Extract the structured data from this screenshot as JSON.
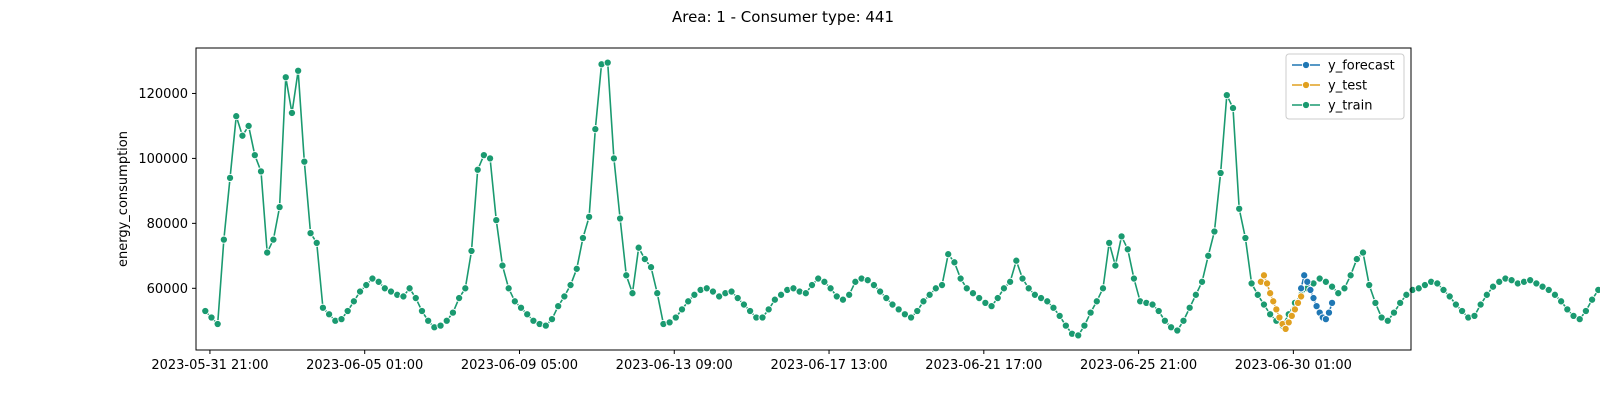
{
  "chart_data": {
    "type": "line",
    "title": "Area: 1 - Consumer type: 441",
    "xlabel": "",
    "ylabel": "energy_consumption",
    "xlim": [
      "2023-05-31 12:00",
      "2023-07-03 05:00"
    ],
    "ylim": [
      41000,
      134000
    ],
    "y_ticks": [
      60000,
      80000,
      100000,
      120000
    ],
    "x_ticks": [
      "2023-05-31 21:00",
      "2023-06-05 01:00",
      "2023-06-09 05:00",
      "2023-06-13 09:00",
      "2023-06-17 13:00",
      "2023-06-21 17:00",
      "2023-06-25 21:00",
      "2023-06-30 01:00"
    ],
    "grid": false,
    "legend_position": "top-right",
    "series": [
      {
        "name": "y_forecast",
        "color": "#1f77b4",
        "start": "2023-06-30 06:00",
        "step_hours": 2,
        "values": [
          60000,
          64000,
          62000,
          59500,
          57000,
          54500,
          52500,
          51000,
          50500,
          52500,
          55500
        ]
      },
      {
        "name": "y_test",
        "color": "#e0a020",
        "start": "2023-06-29 04:00",
        "step_hours": 2,
        "values": [
          62000,
          64000,
          61500,
          58500,
          56000,
          53500,
          51000,
          49000,
          47500,
          49500,
          51500,
          53500,
          55500,
          57500
        ]
      },
      {
        "name": "y_train",
        "color": "#1a9a70",
        "start": "2023-05-31 18:00",
        "step_hours": 4,
        "values": [
          53000,
          51000,
          49000,
          75000,
          94000,
          113000,
          107000,
          110000,
          101000,
          96000,
          71000,
          75000,
          85000,
          125000,
          114000,
          127000,
          99000,
          77000,
          74000,
          54000,
          52000,
          50000,
          50500,
          53000,
          56000,
          59000,
          61000,
          63000,
          62000,
          60000,
          59000,
          58000,
          57500,
          60000,
          57000,
          53000,
          50000,
          48000,
          48500,
          50000,
          52500,
          57000,
          60000,
          71500,
          96500,
          101000,
          100000,
          81000,
          67000,
          60000,
          56000,
          54000,
          52000,
          50000,
          49000,
          48500,
          50500,
          54500,
          57500,
          61000,
          66000,
          75500,
          82000,
          109000,
          129000,
          129500,
          100000,
          81500,
          64000,
          58500,
          72500,
          69000,
          66500,
          58500,
          49000,
          49500,
          51000,
          53500,
          56000,
          58000,
          59500,
          60000,
          59000,
          57500,
          58500,
          59000,
          57000,
          55000,
          53000,
          51000,
          51000,
          53500,
          56500,
          58000,
          59500,
          60000,
          59000,
          58500,
          61000,
          63000,
          62000,
          60000,
          57500,
          56500,
          58000,
          62000,
          63000,
          62500,
          61000,
          59000,
          57000,
          55000,
          53500,
          52000,
          51000,
          53000,
          56000,
          58000,
          60000,
          61000,
          70500,
          68000,
          63000,
          60000,
          58500,
          57000,
          55500,
          54500,
          57000,
          60000,
          62000,
          68500,
          63000,
          60000,
          58000,
          57000,
          56000,
          54000,
          51500,
          48500,
          46000,
          45500,
          48500,
          52500,
          56000,
          60000,
          74000,
          67000,
          76000,
          72000,
          63000,
          56000,
          55500,
          55000,
          53000,
          50000,
          48000,
          47000,
          50000,
          54000,
          58000,
          62000,
          70000,
          77500,
          95500,
          119500,
          115500,
          84500,
          75500,
          61500,
          58000,
          55000,
          52000,
          50000,
          48500,
          52000,
          55500,
          58000,
          60000,
          61500,
          63000,
          62000,
          60500,
          58500,
          60000,
          64000,
          69000,
          71000,
          61000,
          55500,
          51000,
          50000,
          52500,
          55500,
          58000,
          59500,
          60000,
          61000,
          62000,
          61500,
          59500,
          57500,
          55000,
          53000,
          51000,
          51500,
          55000,
          58000,
          60500,
          62000,
          63000,
          62500,
          61500,
          62000,
          62500,
          61500,
          60500,
          59500,
          58000,
          56000,
          53500,
          51500,
          50500,
          53000,
          56500,
          59500,
          61000,
          62500,
          63500,
          65000,
          64000,
          61500,
          59000,
          60500,
          62500,
          62000,
          60000,
          57500,
          55000,
          52500,
          51000,
          49500,
          52000,
          55500,
          58500,
          61000,
          62500,
          64500,
          63500,
          62500,
          61000,
          59000,
          57500,
          56000,
          55000,
          54000,
          53000,
          52500,
          55000,
          58000,
          60000,
          61500,
          61000,
          59500,
          58000,
          56500,
          58500,
          61000,
          60000,
          58000,
          56000,
          54000,
          52500,
          51500,
          54500,
          58000,
          62000,
          65000,
          64500,
          63500,
          62500,
          62000,
          61000,
          59000,
          57000,
          55000,
          53000,
          51500,
          50500,
          52000,
          54500,
          56000,
          57000,
          56000,
          54500,
          53000,
          51500,
          50000,
          48500,
          47000,
          46500,
          48000,
          52000,
          56000,
          58500,
          60000,
          61000,
          60500,
          59000,
          60000,
          61500,
          59000,
          57000,
          55000,
          53000,
          50000,
          48500,
          48000,
          50000,
          54000,
          57000,
          58500,
          60000,
          59500,
          58500,
          57000,
          55000,
          53500,
          52500,
          51000,
          49500,
          47500,
          46000,
          46500,
          50000,
          53500,
          56000,
          58000,
          60500,
          61500,
          62500,
          61500,
          60000,
          58500,
          57500,
          55500,
          53500,
          51500,
          50000,
          51000,
          54500,
          57000,
          58500,
          59000,
          59500,
          59000,
          57500,
          56500,
          55000,
          53500,
          52500,
          51000,
          49500,
          47000,
          45500,
          47000,
          51000,
          54000,
          57000,
          60000,
          63500,
          90500,
          91000,
          73500,
          56000,
          55500,
          54500,
          53500,
          52000,
          50500,
          49500,
          49000,
          51000,
          53000,
          56000,
          60000,
          66500,
          79000,
          82000,
          80500,
          76000,
          66000,
          59500,
          58000,
          56500,
          54500,
          51000,
          48000,
          45500,
          45000,
          46500,
          51000,
          56000,
          60000,
          63000,
          65000,
          63000,
          60000,
          70000,
          69500,
          63500,
          58500,
          57000,
          56500,
          58000,
          62000,
          65500,
          74000,
          78500,
          66000,
          60000,
          62000,
          61500,
          59500,
          71000,
          65500,
          54500,
          53500,
          52500,
          51500,
          49500,
          48500,
          49000,
          51500,
          56000,
          62500,
          66000,
          64000,
          62500,
          63000,
          63500,
          62500,
          61000,
          60000,
          59000,
          58500,
          58000,
          56000,
          53500,
          51000,
          50500,
          55500,
          60500,
          62000
        ]
      }
    ]
  }
}
